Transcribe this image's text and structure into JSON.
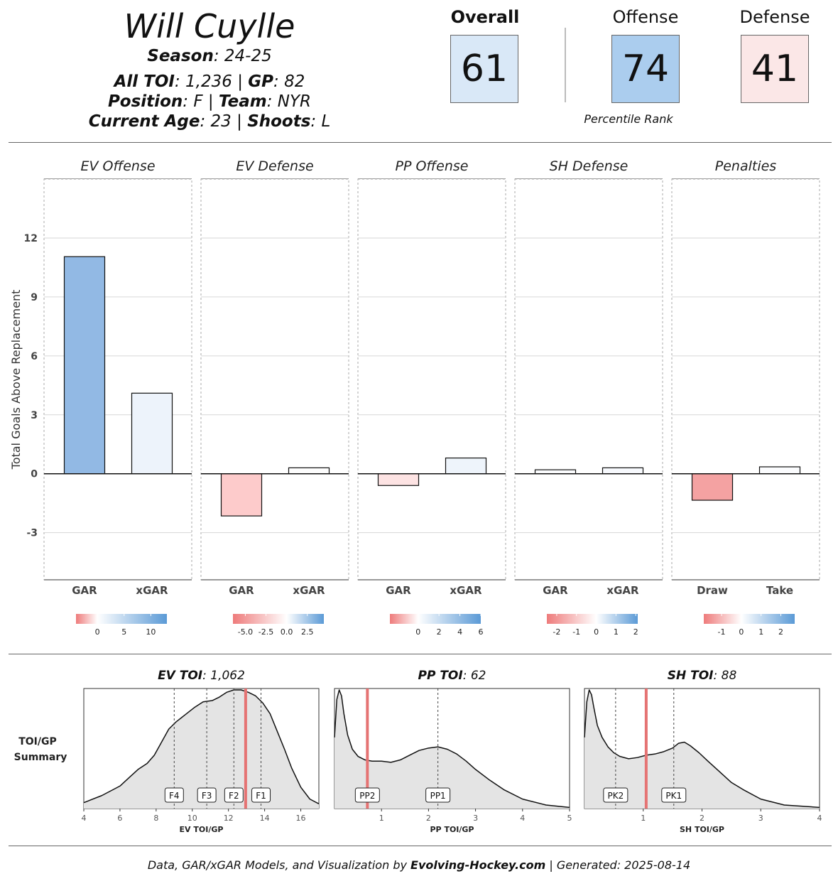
{
  "header": {
    "player_name": "Will Cuylle",
    "season_label": "Season",
    "season_value": "24-25",
    "toi_label": "All TOI",
    "toi_value": "1,236",
    "gp_label": "GP",
    "gp_value": "82",
    "position_label": "Position",
    "position_value": "F",
    "team_label": "Team",
    "team_value": "NYR",
    "age_label": "Current Age",
    "age_value": "23",
    "shoots_label": "Shoots",
    "shoots_value": "L"
  },
  "scores": {
    "overall_label": "Overall",
    "overall_value": "61",
    "overall_color": "#d9e8f7",
    "offense_label": "Offense",
    "offense_value": "74",
    "offense_color": "#abcdee",
    "defense_label": "Defense",
    "defense_value": "41",
    "defense_color": "#fbe7e7",
    "percentile_caption": "Percentile Rank"
  },
  "chart_data": [
    {
      "type": "bar",
      "ylabel": "Total Goals Above Replacement",
      "ylim": [
        -5.4,
        15
      ],
      "yticks": [
        -3,
        0,
        3,
        6,
        9,
        12
      ],
      "grid": true,
      "panels": [
        {
          "title": "EV Offense",
          "categories": [
            "GAR",
            "xGAR"
          ],
          "values": [
            11.05,
            4.1
          ],
          "colors": [
            "#92b9e4",
            "#edf3fb"
          ],
          "legend": {
            "ticks": [
              "0",
              "5",
              "10"
            ],
            "tick_values": [
              0,
              5,
              10
            ],
            "min": -4,
            "max": 13
          }
        },
        {
          "title": "EV Defense",
          "categories": [
            "GAR",
            "xGAR"
          ],
          "values": [
            -2.15,
            0.3
          ],
          "colors": [
            "#fdcbcb",
            "#fdfdfd"
          ],
          "legend": {
            "ticks": [
              "-5.0",
              "-2.5",
              "0.0",
              "2.5"
            ],
            "tick_values": [
              -5,
              -2.5,
              0,
              2.5
            ],
            "min": -6.5,
            "max": 4.5
          }
        },
        {
          "title": "PP Offense",
          "categories": [
            "GAR",
            "xGAR"
          ],
          "values": [
            -0.6,
            0.8
          ],
          "colors": [
            "#fde3e3",
            "#eef4fb"
          ],
          "legend": {
            "ticks": [
              "0",
              "2",
              "4",
              "6"
            ],
            "tick_values": [
              0,
              2,
              4,
              6
            ],
            "min": -2.7,
            "max": 6
          }
        },
        {
          "title": "SH Defense",
          "categories": [
            "GAR",
            "xGAR"
          ],
          "values": [
            0.2,
            0.3
          ],
          "colors": [
            "#fbfcfe",
            "#f7f9fd"
          ],
          "legend": {
            "ticks": [
              "-2",
              "-1",
              "0",
              "1",
              "2"
            ],
            "tick_values": [
              -2,
              -1,
              0,
              1,
              2
            ],
            "min": -2.5,
            "max": 2.1
          }
        },
        {
          "title": "Penalties",
          "categories": [
            "Draw",
            "Take"
          ],
          "values": [
            -1.35,
            0.35
          ],
          "colors": [
            "#f4a2a2",
            "#fbfcfe"
          ],
          "legend": {
            "ticks": [
              "-1",
              "0",
              "1",
              "2"
            ],
            "tick_values": [
              -1,
              0,
              1,
              2
            ],
            "min": -1.9,
            "max": 2.7
          }
        }
      ]
    },
    {
      "type": "area",
      "summary_label_1": "TOI/GP",
      "summary_label_2": "Summary",
      "panels": [
        {
          "title_bold": "EV TOI",
          "title_value": "1,062",
          "xlabel": "EV TOI/GP",
          "xlim": [
            4,
            17
          ],
          "xticks": [
            4,
            6,
            8,
            10,
            12,
            14,
            16
          ],
          "player_value": 12.95,
          "markers": [
            {
              "label": "F4",
              "x": 9.0
            },
            {
              "label": "F3",
              "x": 10.8
            },
            {
              "label": "F2",
              "x": 12.3
            },
            {
              "label": "F1",
              "x": 13.8
            }
          ],
          "density": {
            "x": [
              4,
              5,
              6,
              6.5,
              7,
              7.5,
              7.9,
              8.3,
              8.7,
              9.1,
              9.6,
              10.1,
              10.6,
              11.1,
              11.5,
              11.9,
              12.3,
              12.7,
              13.1,
              13.5,
              13.9,
              14.3,
              14.7,
              15.1,
              15.5,
              16,
              16.5,
              17
            ],
            "y": [
              0.05,
              0.11,
              0.19,
              0.26,
              0.33,
              0.38,
              0.45,
              0.56,
              0.67,
              0.73,
              0.79,
              0.85,
              0.9,
              0.91,
              0.94,
              0.98,
              1.0,
              1.0,
              0.98,
              0.95,
              0.89,
              0.8,
              0.65,
              0.5,
              0.34,
              0.18,
              0.08,
              0.04
            ]
          }
        },
        {
          "title_bold": "PP TOI",
          "title_value": "62",
          "xlabel": "PP TOI/GP",
          "xlim": [
            0,
            5
          ],
          "xticks": [
            1,
            2,
            3,
            4,
            5
          ],
          "player_value": 0.7,
          "markers": [
            {
              "label": "PP2",
              "x": 0.7
            },
            {
              "label": "PP1",
              "x": 2.2
            }
          ],
          "density": {
            "x": [
              0,
              0.05,
              0.1,
              0.15,
              0.2,
              0.28,
              0.38,
              0.5,
              0.65,
              0.8,
              1.0,
              1.2,
              1.4,
              1.6,
              1.8,
              2.0,
              2.2,
              2.4,
              2.6,
              2.8,
              3.0,
              3.3,
              3.6,
              4.0,
              4.5,
              5.0
            ],
            "y": [
              0.6,
              0.92,
              1.0,
              0.95,
              0.8,
              0.62,
              0.5,
              0.44,
              0.41,
              0.4,
              0.4,
              0.39,
              0.41,
              0.45,
              0.49,
              0.51,
              0.52,
              0.5,
              0.46,
              0.4,
              0.33,
              0.24,
              0.16,
              0.08,
              0.03,
              0.01
            ]
          }
        },
        {
          "title_bold": "SH TOI",
          "title_value": "88",
          "xlabel": "SH TOI/GP",
          "xlim": [
            0,
            4
          ],
          "xticks": [
            1,
            2,
            3,
            4
          ],
          "player_value": 1.05,
          "markers": [
            {
              "label": "PK2",
              "x": 0.53
            },
            {
              "label": "PK1",
              "x": 1.52
            }
          ],
          "density": {
            "x": [
              0,
              0.04,
              0.08,
              0.12,
              0.16,
              0.22,
              0.3,
              0.4,
              0.5,
              0.6,
              0.75,
              0.9,
              1.05,
              1.2,
              1.35,
              1.5,
              1.6,
              1.7,
              1.8,
              1.95,
              2.1,
              2.3,
              2.5,
              2.7,
              3.0,
              3.4,
              4.0
            ],
            "y": [
              0.6,
              0.9,
              1.0,
              0.96,
              0.85,
              0.7,
              0.6,
              0.52,
              0.47,
              0.44,
              0.42,
              0.43,
              0.45,
              0.46,
              0.48,
              0.51,
              0.55,
              0.56,
              0.53,
              0.47,
              0.4,
              0.31,
              0.22,
              0.16,
              0.08,
              0.03,
              0.01
            ]
          }
        }
      ]
    }
  ],
  "footer": {
    "prefix": "Data, GAR/xGAR Models, and Visualization by ",
    "brand": "Evolving-Hockey.com",
    "suffix": " | Generated: 2025-08-14"
  }
}
